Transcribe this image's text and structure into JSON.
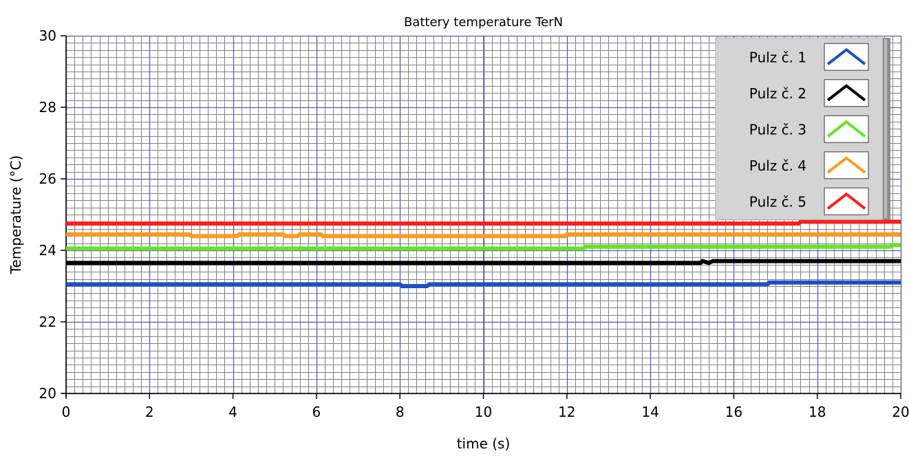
{
  "chart_data": {
    "type": "line",
    "title": "Battery temperature TerN",
    "xlabel": "time (s)",
    "ylabel": "Temperature (°C)",
    "xlim": [
      0,
      20
    ],
    "ylim": [
      20,
      30
    ],
    "x_ticks": [
      0,
      2,
      4,
      6,
      8,
      10,
      12,
      14,
      16,
      18,
      20
    ],
    "y_ticks": [
      20,
      22,
      24,
      26,
      28,
      30
    ],
    "grid": "on",
    "legend_position": "top-right",
    "background": "#FFFFFF",
    "major_grid_color": "#5A5AA0",
    "minor_grid_color": "#808080",
    "series": [
      {
        "name": "Pulz č. 1",
        "color": "#1F4FC8",
        "points": [
          [
            0,
            23.05
          ],
          [
            8.0,
            23.05
          ],
          [
            8.05,
            23.0
          ],
          [
            8.65,
            23.0
          ],
          [
            8.7,
            23.05
          ],
          [
            16.8,
            23.05
          ],
          [
            16.85,
            23.1
          ],
          [
            20,
            23.1
          ]
        ]
      },
      {
        "name": "Pulz č. 2",
        "color": "#000000",
        "points": [
          [
            0,
            23.65
          ],
          [
            15.2,
            23.65
          ],
          [
            15.25,
            23.7
          ],
          [
            15.4,
            23.65
          ],
          [
            15.5,
            23.7
          ],
          [
            20,
            23.7
          ]
        ]
      },
      {
        "name": "Pulz č. 3",
        "color": "#66E22A",
        "points": [
          [
            0,
            24.05
          ],
          [
            12.4,
            24.05
          ],
          [
            12.45,
            24.1
          ],
          [
            19.75,
            24.1
          ],
          [
            19.8,
            24.15
          ],
          [
            20,
            24.15
          ]
        ]
      },
      {
        "name": "Pulz č. 4",
        "color": "#FF9B1E",
        "points": [
          [
            0,
            24.45
          ],
          [
            2.95,
            24.45
          ],
          [
            3.0,
            24.4
          ],
          [
            4.1,
            24.4
          ],
          [
            4.15,
            24.45
          ],
          [
            5.2,
            24.45
          ],
          [
            5.25,
            24.4
          ],
          [
            5.55,
            24.4
          ],
          [
            5.6,
            24.45
          ],
          [
            6.1,
            24.45
          ],
          [
            6.15,
            24.4
          ],
          [
            11.95,
            24.4
          ],
          [
            12.0,
            24.45
          ],
          [
            20,
            24.45
          ]
        ]
      },
      {
        "name": "Pulz č. 5",
        "color": "#FF1F1F",
        "points": [
          [
            0,
            24.75
          ],
          [
            17.55,
            24.75
          ],
          [
            17.6,
            24.8
          ],
          [
            20,
            24.8
          ]
        ]
      }
    ]
  }
}
